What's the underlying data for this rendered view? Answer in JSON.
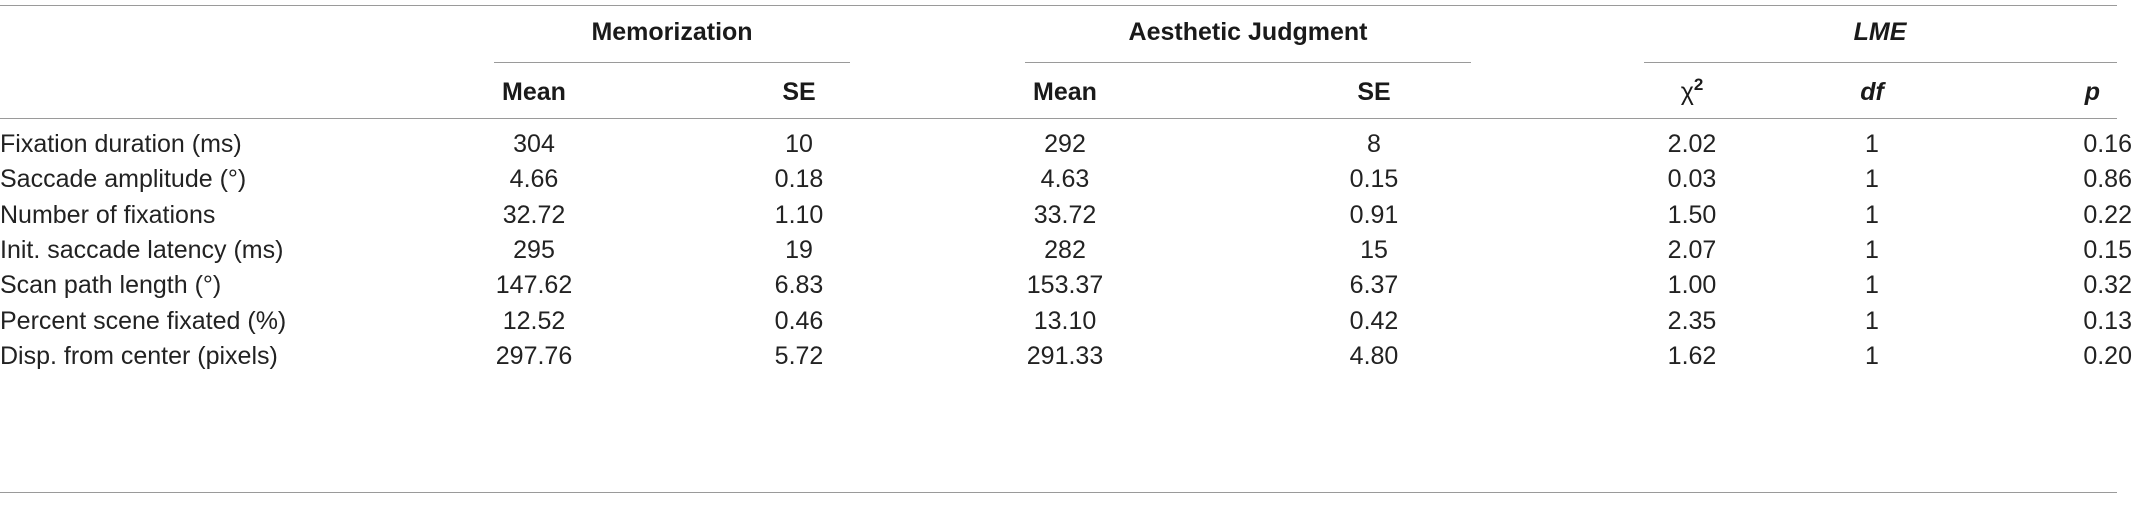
{
  "header": {
    "groups": {
      "memorization": "Memorization",
      "aesthetic": "Aesthetic Judgment",
      "lme": "LME"
    },
    "subheaders": {
      "mem_mean": "Mean",
      "mem_se": "SE",
      "aes_mean": "Mean",
      "aes_se": "SE",
      "chi_symbol": "χ",
      "chi_sup": "2",
      "df": "df",
      "p": "p"
    }
  },
  "rows": [
    [
      "Fixation duration (ms)",
      "304",
      "10",
      "292",
      "8",
      "2.02",
      "1",
      "0.16"
    ],
    [
      "Saccade amplitude (°)",
      "4.66",
      "0.18",
      "4.63",
      "0.15",
      "0.03",
      "1",
      "0.86"
    ],
    [
      "Number of fixations",
      "32.72",
      "1.10",
      "33.72",
      "0.91",
      "1.50",
      "1",
      "0.22"
    ],
    [
      "Init. saccade latency (ms)",
      "295",
      "19",
      "282",
      "15",
      "2.07",
      "1",
      "0.15"
    ],
    [
      "Scan path length (°)",
      "147.62",
      "6.83",
      "153.37",
      "6.37",
      "1.00",
      "1",
      "0.32"
    ],
    [
      "Percent scene fixated (%)",
      "12.52",
      "0.46",
      "13.10",
      "0.42",
      "2.35",
      "1",
      "0.13"
    ],
    [
      "Disp. from center (pixels)",
      "297.76",
      "5.72",
      "291.33",
      "4.80",
      "1.62",
      "1",
      "0.20"
    ]
  ]
}
